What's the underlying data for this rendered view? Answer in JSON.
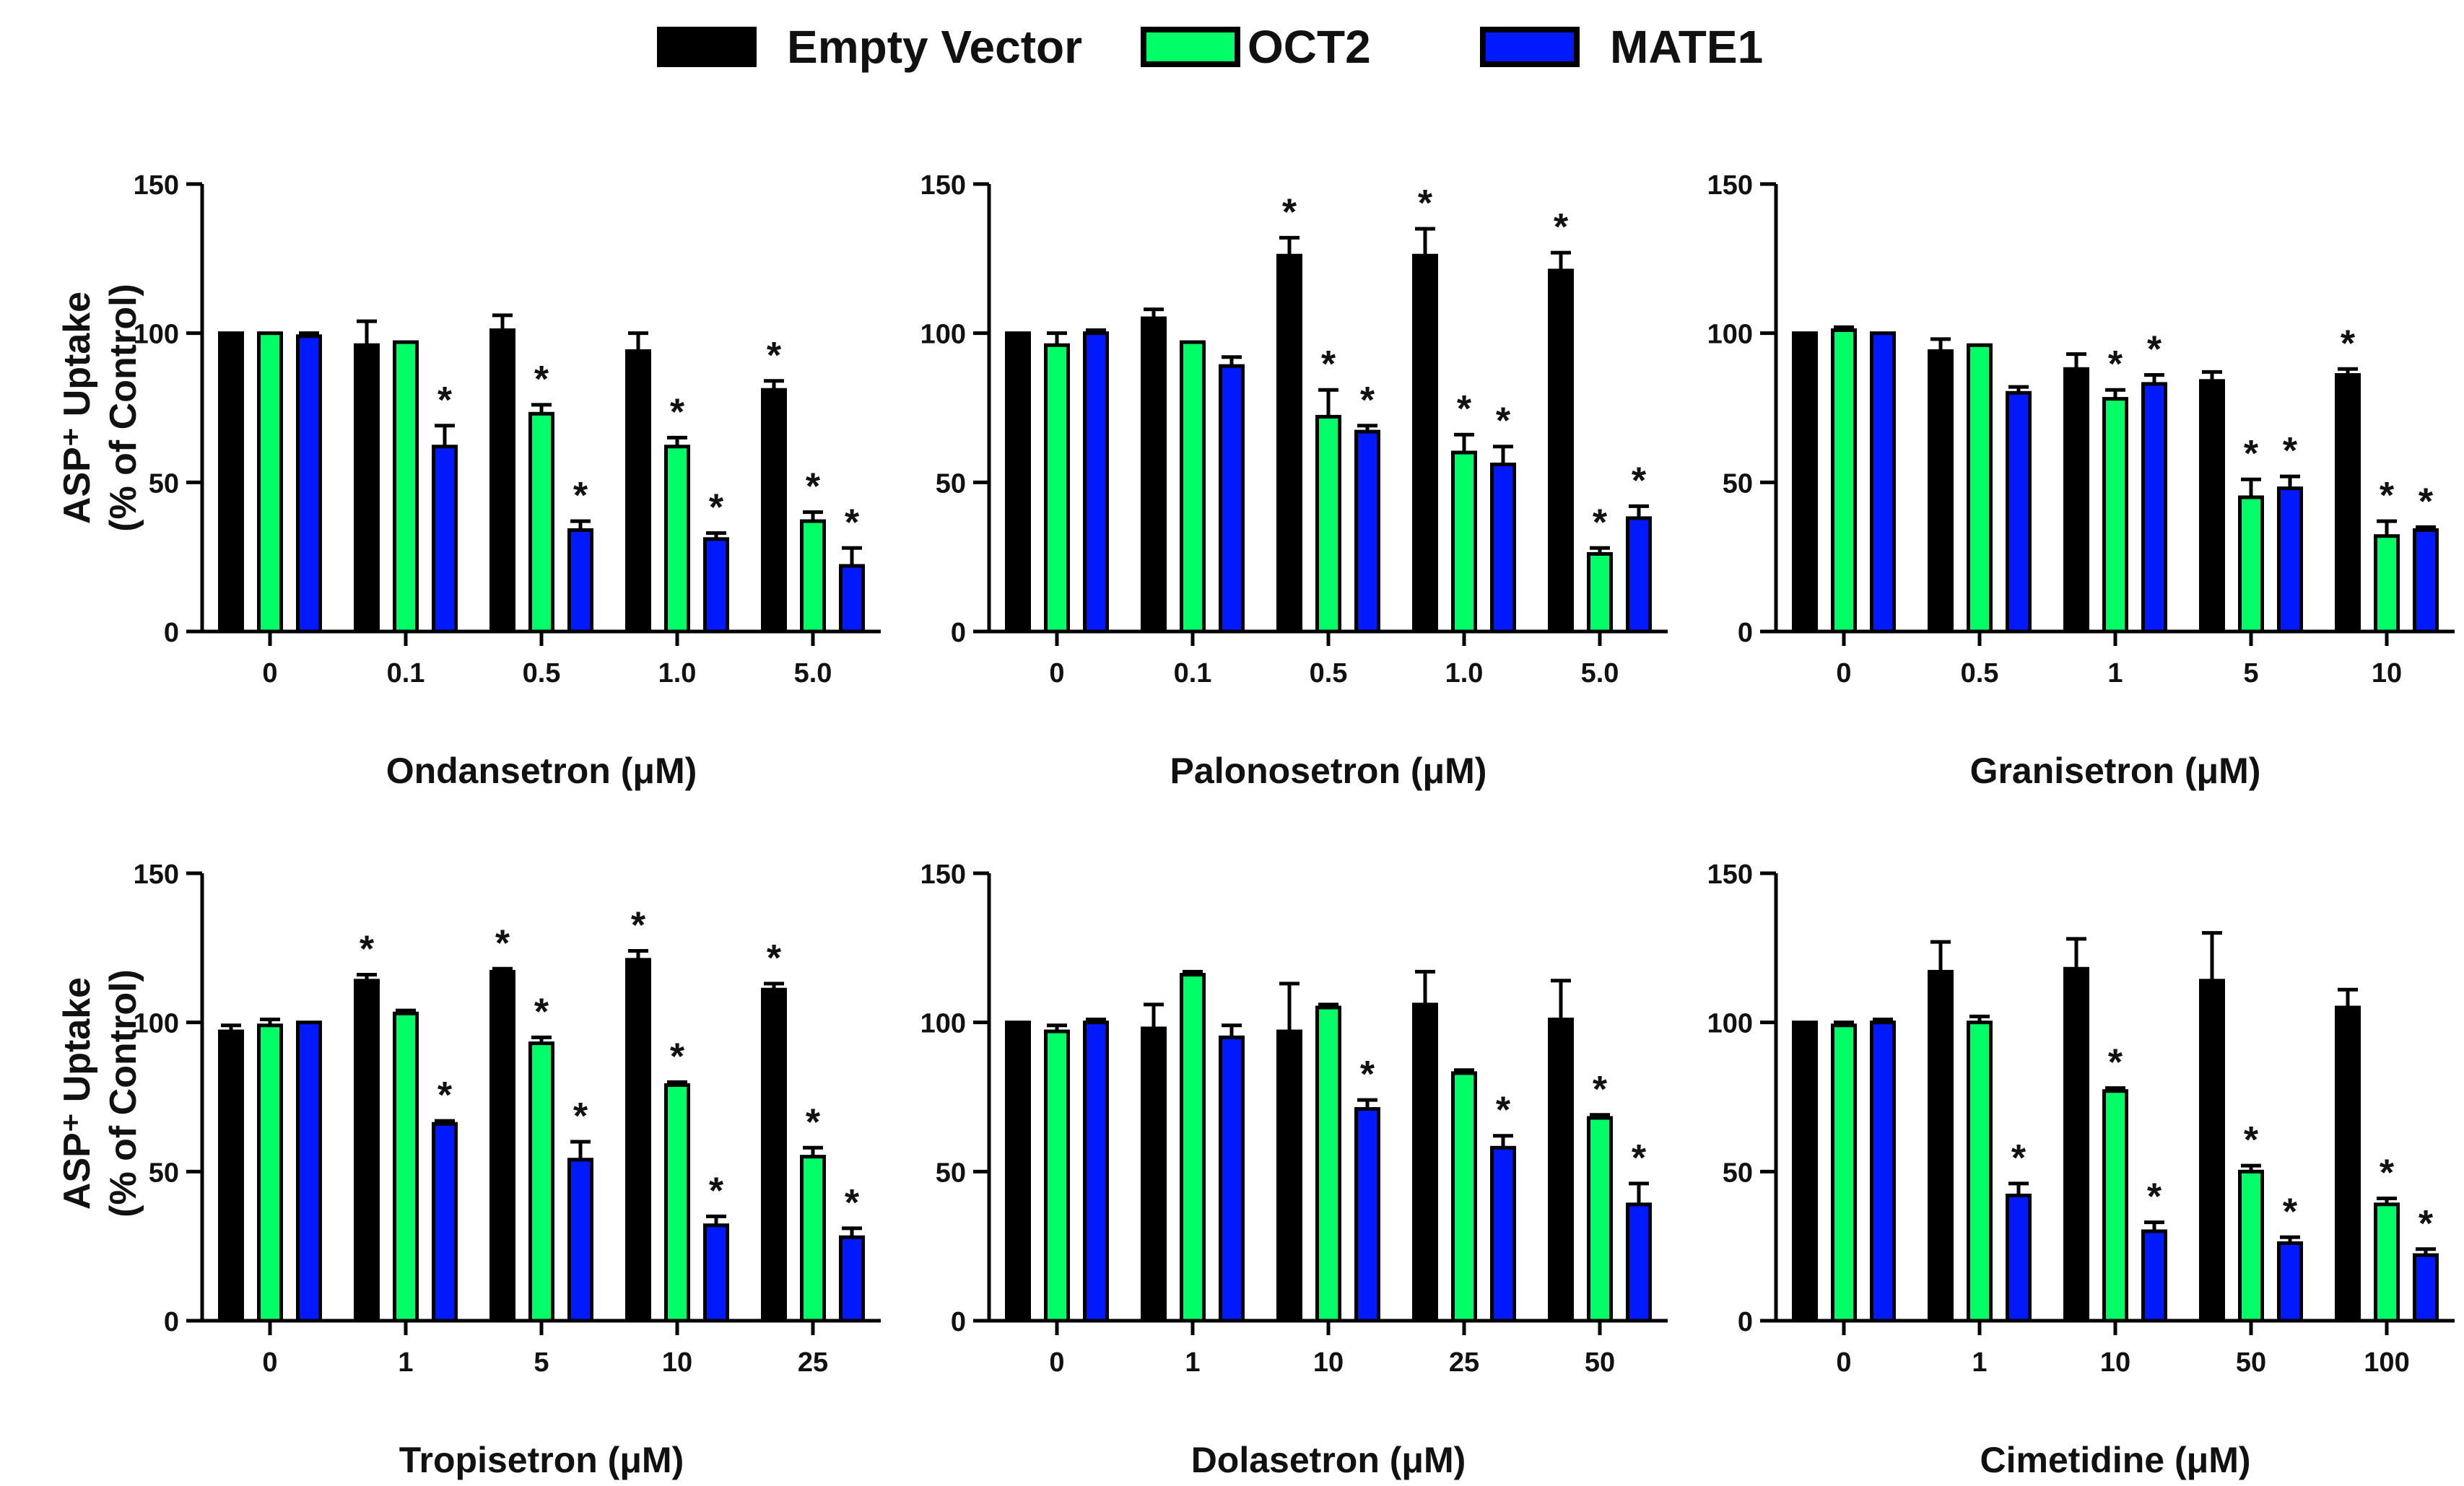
{
  "legend": {
    "items": [
      {
        "label": "Empty Vector",
        "color": "#000000"
      },
      {
        "label": "OCT2",
        "color": "#00ff66"
      },
      {
        "label": "MATE1",
        "color": "#0019ff"
      }
    ]
  },
  "y_axis_label": {
    "line1": "ASP⁺ Uptake",
    "line2": "(% of Control)"
  },
  "chart_data": [
    {
      "type": "bar",
      "xlabel": "Ondansetron (μM)",
      "ylabel": "ASP⁺ Uptake (% of Control)",
      "ylim": [
        0,
        150
      ],
      "yticks": [
        0,
        50,
        100,
        150
      ],
      "categories": [
        "0",
        "0.1",
        "0.5",
        "1.0",
        "5.0"
      ],
      "series": [
        {
          "name": "Empty Vector",
          "values": [
            100,
            96,
            101,
            94,
            81
          ],
          "errors": [
            0,
            8,
            5,
            6,
            3
          ],
          "significant": [
            false,
            false,
            false,
            false,
            true
          ]
        },
        {
          "name": "OCT2",
          "values": [
            100,
            97,
            73,
            62,
            37
          ],
          "errors": [
            0,
            0,
            3,
            3,
            3
          ],
          "significant": [
            false,
            false,
            true,
            true,
            true
          ]
        },
        {
          "name": "MATE1",
          "values": [
            99,
            62,
            34,
            31,
            22
          ],
          "errors": [
            1,
            7,
            3,
            2,
            6
          ],
          "significant": [
            false,
            true,
            true,
            true,
            true
          ]
        }
      ]
    },
    {
      "type": "bar",
      "xlabel": "Palonosetron (μM)",
      "ylabel": "ASP⁺ Uptake (% of Control)",
      "ylim": [
        0,
        150
      ],
      "yticks": [
        0,
        50,
        100,
        150
      ],
      "categories": [
        "0",
        "0.1",
        "0.5",
        "1.0",
        "5.0"
      ],
      "series": [
        {
          "name": "Empty Vector",
          "values": [
            100,
            105,
            126,
            126,
            121
          ],
          "errors": [
            0,
            3,
            6,
            9,
            6
          ],
          "significant": [
            false,
            false,
            true,
            true,
            true
          ]
        },
        {
          "name": "OCT2",
          "values": [
            96,
            97,
            72,
            60,
            26
          ],
          "errors": [
            4,
            0,
            9,
            6,
            2
          ],
          "significant": [
            false,
            false,
            true,
            true,
            true
          ]
        },
        {
          "name": "MATE1",
          "values": [
            100,
            89,
            67,
            56,
            38
          ],
          "errors": [
            1,
            3,
            2,
            6,
            4
          ],
          "significant": [
            false,
            false,
            true,
            true,
            true
          ]
        }
      ]
    },
    {
      "type": "bar",
      "xlabel": "Granisetron (μM)",
      "ylabel": "ASP⁺ Uptake (% of Control)",
      "ylim": [
        0,
        150
      ],
      "yticks": [
        0,
        50,
        100,
        150
      ],
      "categories": [
        "0",
        "0.5",
        "1",
        "5",
        "10"
      ],
      "series": [
        {
          "name": "Empty Vector",
          "values": [
            100,
            94,
            88,
            84,
            86
          ],
          "errors": [
            0,
            4,
            5,
            3,
            2
          ],
          "significant": [
            false,
            false,
            false,
            false,
            true
          ]
        },
        {
          "name": "OCT2",
          "values": [
            101,
            96,
            78,
            45,
            32
          ],
          "errors": [
            1,
            0,
            3,
            6,
            5
          ],
          "significant": [
            false,
            false,
            true,
            true,
            true
          ]
        },
        {
          "name": "MATE1",
          "values": [
            100,
            80,
            83,
            48,
            34
          ],
          "errors": [
            0,
            2,
            3,
            4,
            1
          ],
          "significant": [
            false,
            false,
            true,
            true,
            true
          ]
        }
      ]
    },
    {
      "type": "bar",
      "xlabel": "Tropisetron (μM)",
      "ylabel": "ASP⁺ Uptake (% of Control)",
      "ylim": [
        0,
        150
      ],
      "yticks": [
        0,
        50,
        100,
        150
      ],
      "categories": [
        "0",
        "1",
        "5",
        "10",
        "25"
      ],
      "series": [
        {
          "name": "Empty Vector",
          "values": [
            97,
            114,
            117,
            121,
            111
          ],
          "errors": [
            2,
            2,
            1,
            3,
            2
          ],
          "significant": [
            false,
            true,
            true,
            true,
            true
          ]
        },
        {
          "name": "OCT2",
          "values": [
            99,
            103,
            93,
            79,
            55
          ],
          "errors": [
            2,
            1,
            2,
            1,
            3
          ],
          "significant": [
            false,
            false,
            true,
            true,
            true
          ]
        },
        {
          "name": "MATE1",
          "values": [
            100,
            66,
            54,
            32,
            28
          ],
          "errors": [
            0,
            1,
            6,
            3,
            3
          ],
          "significant": [
            false,
            true,
            true,
            true,
            true
          ]
        }
      ]
    },
    {
      "type": "bar",
      "xlabel": "Dolasetron (μM)",
      "ylabel": "ASP⁺ Uptake (% of Control)",
      "ylim": [
        0,
        150
      ],
      "yticks": [
        0,
        50,
        100,
        150
      ],
      "categories": [
        "0",
        "1",
        "10",
        "25",
        "50"
      ],
      "series": [
        {
          "name": "Empty Vector",
          "values": [
            100,
            98,
            97,
            106,
            101
          ],
          "errors": [
            0,
            8,
            16,
            11,
            13
          ],
          "significant": [
            false,
            false,
            false,
            false,
            false
          ]
        },
        {
          "name": "OCT2",
          "values": [
            97,
            116,
            105,
            83,
            68
          ],
          "errors": [
            2,
            1,
            1,
            1,
            1
          ],
          "significant": [
            false,
            false,
            false,
            false,
            true
          ]
        },
        {
          "name": "MATE1",
          "values": [
            100,
            95,
            71,
            58,
            39
          ],
          "errors": [
            1,
            4,
            3,
            4,
            7
          ],
          "significant": [
            false,
            false,
            true,
            true,
            true
          ]
        }
      ]
    },
    {
      "type": "bar",
      "xlabel": "Cimetidine (μM)",
      "ylabel": "ASP⁺ Uptake (% of Control)",
      "ylim": [
        0,
        150
      ],
      "yticks": [
        0,
        50,
        100,
        150
      ],
      "categories": [
        "0",
        "1",
        "10",
        "50",
        "100"
      ],
      "series": [
        {
          "name": "Empty Vector",
          "values": [
            100,
            117,
            118,
            114,
            105
          ],
          "errors": [
            0,
            10,
            10,
            16,
            6
          ],
          "significant": [
            false,
            false,
            false,
            false,
            false
          ]
        },
        {
          "name": "OCT2",
          "values": [
            99,
            100,
            77,
            50,
            39
          ],
          "errors": [
            1,
            2,
            1,
            2,
            2
          ],
          "significant": [
            false,
            false,
            true,
            true,
            true
          ]
        },
        {
          "name": "MATE1",
          "values": [
            100,
            42,
            30,
            26,
            22
          ],
          "errors": [
            1,
            4,
            3,
            2,
            2
          ],
          "significant": [
            false,
            true,
            true,
            true,
            true
          ]
        }
      ]
    }
  ]
}
